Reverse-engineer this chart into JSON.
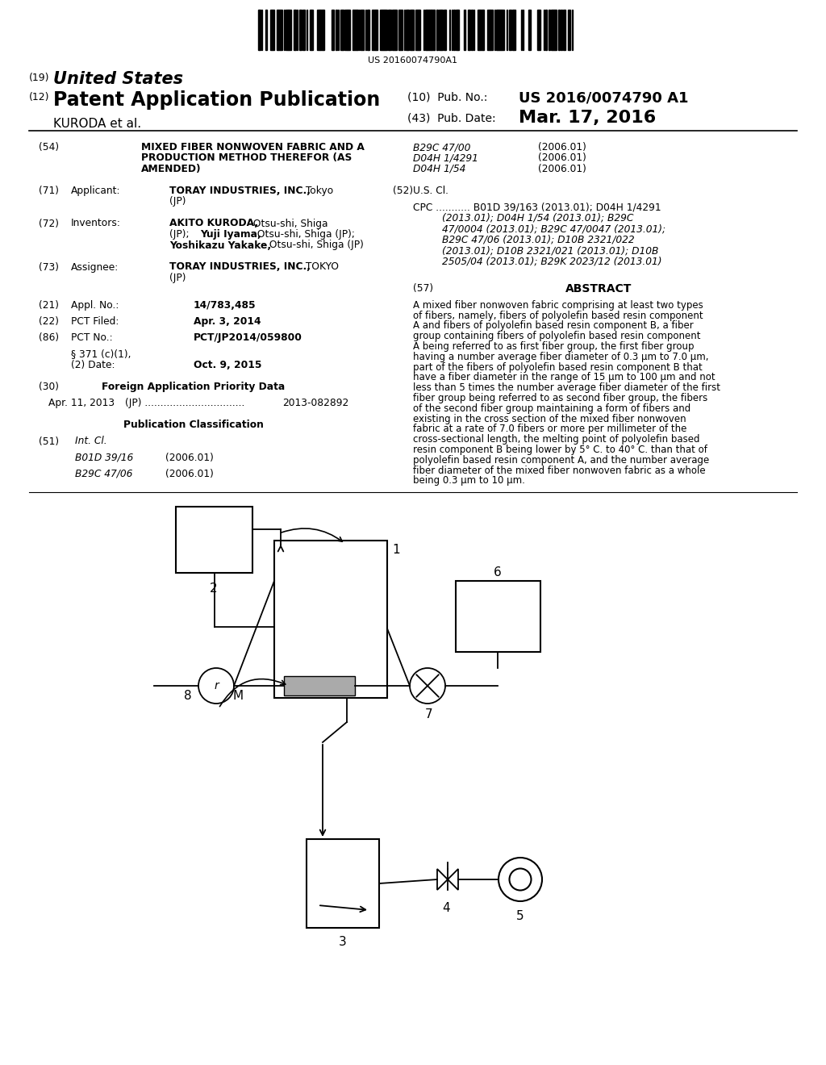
{
  "bg_color": "#ffffff",
  "barcode_text": "US 20160074790A1",
  "country": "United States",
  "country_num": "(19)",
  "pub_type": "Patent Application Publication",
  "pub_type_num": "(12)",
  "inventors_line": "KURODA et al.",
  "pub_no_label": "(10)  Pub. No.:",
  "pub_no": "US 2016/0074790 A1",
  "pub_date_label": "(43)  Pub. Date:",
  "pub_date": "Mar. 17, 2016",
  "cpc_codes_1": "B29C 47/00",
  "cpc_codes_1_date": "(2006.01)",
  "cpc_codes_2": "D04H 1/4291",
  "cpc_codes_2_date": "(2006.01)",
  "cpc_codes_3": "D04H 1/54",
  "cpc_codes_3_date": "(2006.01)",
  "us_cl_num": "(52)",
  "us_cl_label": "U.S. Cl.",
  "abstract_title": "ABSTRACT"
}
